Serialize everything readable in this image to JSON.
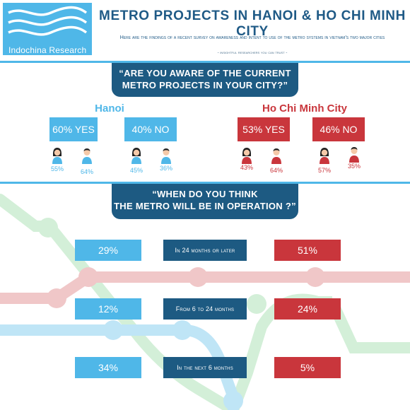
{
  "brand": {
    "name": "Indochina Research"
  },
  "header": {
    "title": "METRO PROJECTS IN HANOI & HO CHI MINH CITY",
    "subtitle": "Here are the findings of a recent survey on awareness and intent to use of the metro systems in vietnam's two major cities",
    "tagline": "- insightful researchers you can trust -"
  },
  "awareness": {
    "question_line1": "“ARE YOU AWARE OF THE CURRENT",
    "question_line2": "METRO PROJECTS IN YOUR CITY?”",
    "hanoi": {
      "name": "Hanoi",
      "yes": {
        "label": "60% YES",
        "female": "55%",
        "male": "64%"
      },
      "no": {
        "label": "40% NO",
        "female": "45%",
        "male": "36%"
      }
    },
    "hcmc": {
      "name": "Ho Chi Minh City",
      "yes": {
        "label": "53% YES",
        "female": "43%",
        "male": "64%"
      },
      "no": {
        "label": "46% NO",
        "female": "57%",
        "male": "35%"
      }
    }
  },
  "operation": {
    "question_line1": "“WHEN DO YOU THINK",
    "question_line2": "THE METRO WILL BE IN OPERATION ?”",
    "rows": [
      {
        "hanoi": "29%",
        "label": "In 24 months or later",
        "hcmc": "51%"
      },
      {
        "hanoi": "12%",
        "label": "From 6 to 24 months",
        "hcmc": "24%"
      },
      {
        "hanoi": "34%",
        "label": "In the next 6 months",
        "hcmc": "5%"
      }
    ]
  },
  "colors": {
    "hanoi": "#4fb7e8",
    "hcmc": "#c9363c",
    "navy": "#1d5a82",
    "line_green": "#d3efd8",
    "line_pink": "#f0c7c8",
    "line_blue": "#bfe5f6"
  }
}
